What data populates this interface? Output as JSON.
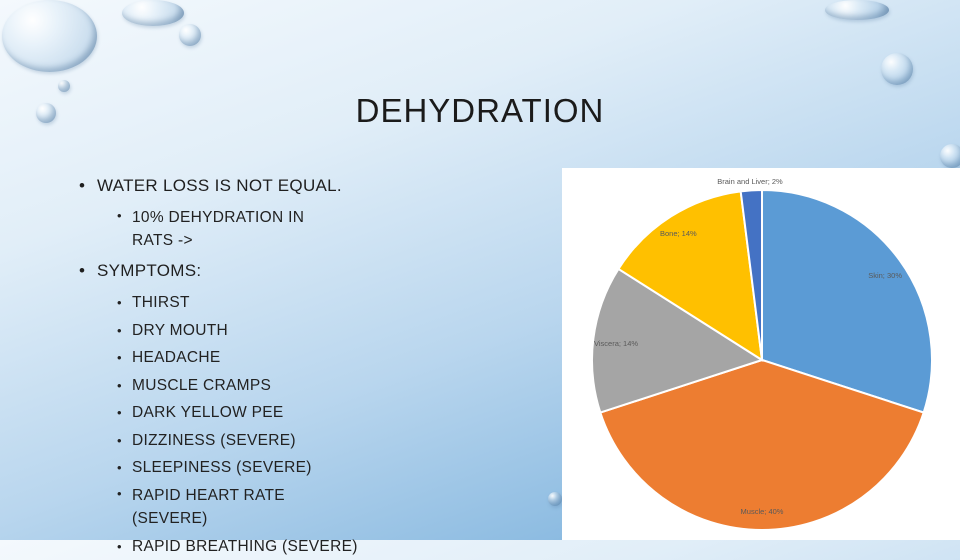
{
  "slide": {
    "title": "DEHYDRATION",
    "bullets": [
      {
        "text": "WATER LOSS IS NOT EQUAL.",
        "sub": [
          "10% DEHYDRATION IN RATS ->"
        ]
      },
      {
        "text": "SYMPTOMS:",
        "sub": [
          "THIRST",
          "DRY MOUTH",
          "HEADACHE",
          "MUSCLE CRAMPS",
          "DARK YELLOW PEE",
          "DIZZINESS (SEVERE)",
          "SLEEPINESS (SEVERE)",
          "RAPID HEART RATE (SEVERE)",
          "RAPID BREATHING (SEVERE)"
        ]
      }
    ]
  },
  "chart_data": {
    "type": "pie",
    "slices": [
      {
        "label": "Skin; 30%",
        "value": 30,
        "color": "#5b9bd5"
      },
      {
        "label": "Muscle; 40%",
        "value": 40,
        "color": "#ed7d31"
      },
      {
        "label": "Viscera; 14%",
        "value": 14,
        "color": "#a5a5a5"
      },
      {
        "label": "Bone; 14%",
        "value": 14,
        "color": "#ffc000"
      },
      {
        "label": "Brain and Liver; 2%",
        "value": 2,
        "color": "#4472c4"
      }
    ]
  }
}
